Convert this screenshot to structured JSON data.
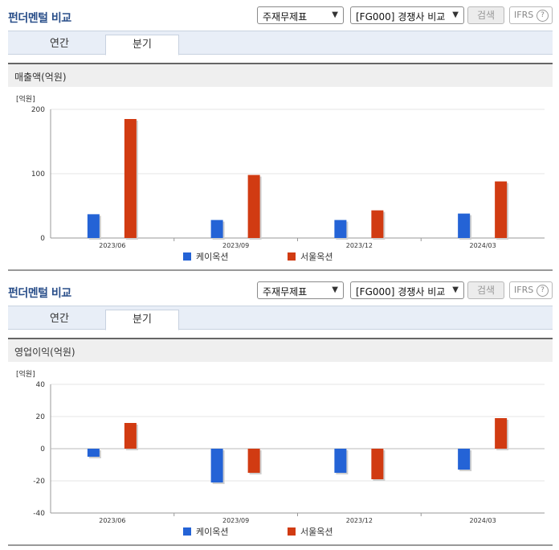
{
  "colors": {
    "series1": "#2463d6",
    "series2": "#d13b12"
  },
  "panels": [
    {
      "title": "펀더멘털 비교",
      "select1": "주재무제표",
      "select2": "[FG000] 경쟁사 비교",
      "search_label": "검색",
      "ifrs_label": "IFRS",
      "tabs": [
        "연간",
        "분기"
      ],
      "active_tab": 1,
      "section_title": "매출액(억원)"
    },
    {
      "title": "펀더멘털 비교",
      "select1": "주재무제표",
      "select2": "[FG000] 경쟁사 비교",
      "search_label": "검색",
      "ifrs_label": "IFRS",
      "tabs": [
        "연간",
        "분기"
      ],
      "active_tab": 1,
      "section_title": "영업이익(억원)"
    }
  ],
  "chart_data": [
    {
      "type": "bar",
      "unit_label": "[억원]",
      "categories": [
        "2023/06",
        "2023/09",
        "2023/12",
        "2024/03"
      ],
      "ylim": [
        0,
        200
      ],
      "yticks": [
        0,
        100,
        200
      ],
      "series": [
        {
          "name": "케이옥션",
          "values": [
            37,
            28,
            28,
            38
          ]
        },
        {
          "name": "서울옥션",
          "values": [
            185,
            98,
            43,
            88
          ]
        }
      ]
    },
    {
      "type": "bar",
      "unit_label": "[억원]",
      "categories": [
        "2023/06",
        "2023/09",
        "2023/12",
        "2024/03"
      ],
      "ylim": [
        -40,
        40
      ],
      "yticks": [
        -40,
        -20,
        0,
        20,
        40
      ],
      "series": [
        {
          "name": "케이옥션",
          "values": [
            -5,
            -21,
            -15,
            -13
          ]
        },
        {
          "name": "서울옥션",
          "values": [
            16,
            -15,
            -19,
            19
          ]
        }
      ]
    }
  ]
}
